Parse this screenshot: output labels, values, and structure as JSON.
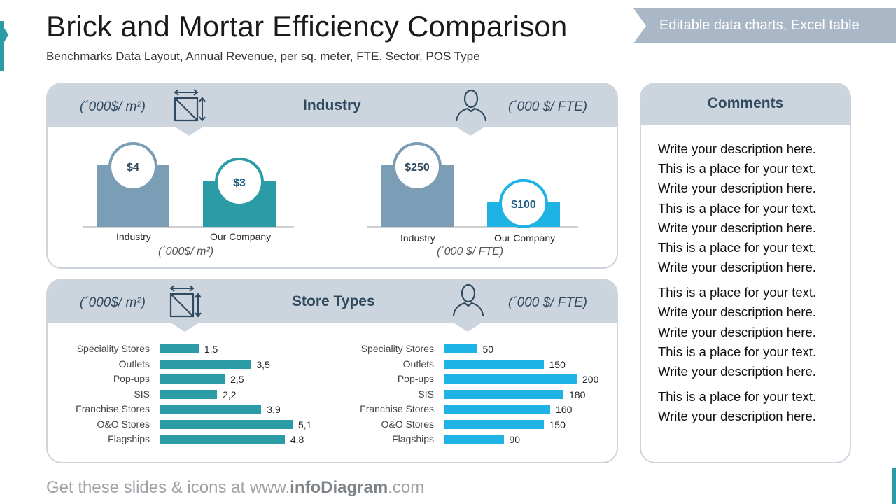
{
  "header": {
    "title": "Brick and Mortar Efficiency Comparison",
    "subtitle": "Benchmarks Data Layout, Annual Revenue, per sq. meter, FTE. Sector, POS Type",
    "ribbon": "Editable data charts, Excel table"
  },
  "industry_panel": {
    "title": "Industry",
    "unit_area": "(´000$/ m²)",
    "unit_fte": "(´000 $/ FTE)"
  },
  "store_panel": {
    "title": "Store Types",
    "unit_area": "(´000$/ m²)",
    "unit_fte": "(´000 $/ FTE)"
  },
  "comments": {
    "title": "Comments",
    "lines": [
      "Write your description here.",
      "This is a place for your text.",
      "Write your description here.",
      "This is a place for your text.",
      "Write your description here.",
      "This is a place for your text.",
      "Write your description here.",
      "This is a place for your text.",
      "Write your description here.",
      "Write your description here.",
      "This is a place for your text.",
      "Write your description here.",
      "This is a place for your text.",
      "Write your description here."
    ]
  },
  "footer": {
    "prefix": "Get these slides & icons at www.",
    "brand": "infoDiagram",
    "suffix": ".com"
  },
  "colors": {
    "industry": "#7b9db5",
    "company_area": "#2b9ca6",
    "company_fte": "#1fb2e4",
    "panel_head": "#ccd4dd",
    "ribbon": "#a9b7c6"
  },
  "chart_data": [
    {
      "type": "bar",
      "categories": [
        "Industry",
        "Our Company"
      ],
      "values": [
        4,
        3
      ],
      "value_labels": [
        "$4",
        "$3"
      ],
      "xlabel": "(´000$/ m²)"
    },
    {
      "type": "bar",
      "categories": [
        "Industry",
        "Our Company"
      ],
      "values": [
        250,
        100
      ],
      "value_labels": [
        "$250",
        "$100"
      ],
      "xlabel": "(´000 $/ FTE)"
    },
    {
      "type": "bar",
      "orientation": "horizontal",
      "categories": [
        "Speciality Stores",
        "Outlets",
        "Pop-ups",
        "SIS",
        "Franchise Stores",
        "O&O Stores",
        "Flagships"
      ],
      "values": [
        1.5,
        3.5,
        2.5,
        2.2,
        3.9,
        5.1,
        4.8
      ],
      "value_labels": [
        "1,5",
        "3,5",
        "2,5",
        "2,2",
        "3,9",
        "5,1",
        "4,8"
      ]
    },
    {
      "type": "bar",
      "orientation": "horizontal",
      "categories": [
        "Speciality Stores",
        "Outlets",
        "Pop-ups",
        "SIS",
        "Franchise Stores",
        "O&O Stores",
        "Flagships"
      ],
      "values": [
        50,
        150,
        200,
        180,
        160,
        150,
        90
      ],
      "value_labels": [
        "50",
        "150",
        "200",
        "180",
        "160",
        "150",
        "90"
      ]
    }
  ]
}
